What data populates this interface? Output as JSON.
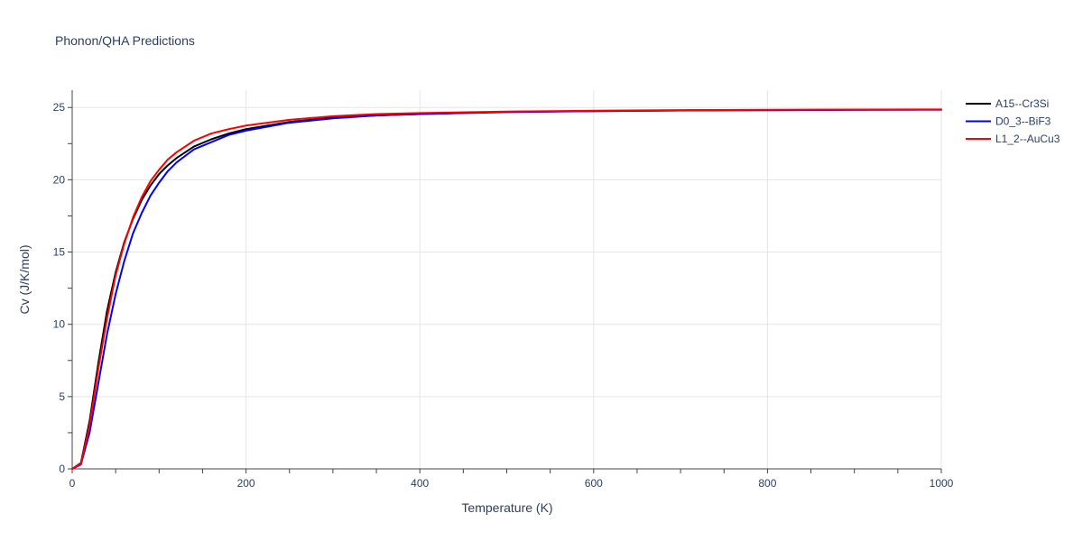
{
  "chart_data": {
    "type": "line",
    "title": "Phonon/QHA Predictions",
    "xlabel": "Temperature (K)",
    "ylabel": "Cv (J/K/mol)",
    "xlim": [
      0,
      1000
    ],
    "ylim": [
      0,
      26.2
    ],
    "xticks": [
      0,
      200,
      400,
      600,
      800,
      1000
    ],
    "yticks": [
      0,
      5,
      10,
      15,
      20,
      25
    ],
    "grid": true,
    "legend_position": "top-right",
    "series": [
      {
        "name": "A15--Cr3Si",
        "color": "#000000",
        "x": [
          0,
          10,
          20,
          30,
          40,
          50,
          60,
          70,
          80,
          90,
          100,
          110,
          120,
          140,
          160,
          180,
          200,
          250,
          300,
          350,
          400,
          500,
          600,
          700,
          800,
          900,
          1000
        ],
        "y": [
          0,
          0.4,
          3.3,
          7.3,
          10.9,
          13.6,
          15.7,
          17.3,
          18.6,
          19.6,
          20.4,
          21.0,
          21.5,
          22.3,
          22.8,
          23.2,
          23.5,
          24.0,
          24.3,
          24.45,
          24.55,
          24.7,
          24.75,
          24.8,
          24.82,
          24.84,
          24.85
        ]
      },
      {
        "name": "D0_3--BiF3",
        "color": "#0000ff",
        "x": [
          0,
          10,
          20,
          30,
          40,
          50,
          60,
          70,
          80,
          90,
          100,
          110,
          120,
          140,
          160,
          180,
          200,
          250,
          300,
          350,
          400,
          500,
          600,
          700,
          800,
          900,
          1000
        ],
        "y": [
          0,
          0.3,
          2.5,
          5.9,
          9.3,
          12.1,
          14.4,
          16.3,
          17.7,
          18.9,
          19.8,
          20.6,
          21.2,
          22.1,
          22.6,
          23.1,
          23.4,
          23.95,
          24.25,
          24.45,
          24.55,
          24.68,
          24.75,
          24.8,
          24.82,
          24.84,
          24.85
        ]
      },
      {
        "name": "L1_2--AuCu3",
        "color": "#ff0000",
        "x": [
          0,
          10,
          20,
          30,
          40,
          50,
          60,
          70,
          80,
          90,
          100,
          110,
          120,
          140,
          160,
          180,
          200,
          250,
          300,
          350,
          400,
          500,
          600,
          700,
          800,
          900,
          1000
        ],
        "y": [
          0,
          0.35,
          3.0,
          6.9,
          10.4,
          13.4,
          15.6,
          17.4,
          18.8,
          19.9,
          20.7,
          21.4,
          21.9,
          22.7,
          23.2,
          23.5,
          23.75,
          24.15,
          24.4,
          24.55,
          24.62,
          24.72,
          24.78,
          24.82,
          24.84,
          24.86,
          24.87
        ]
      }
    ]
  }
}
